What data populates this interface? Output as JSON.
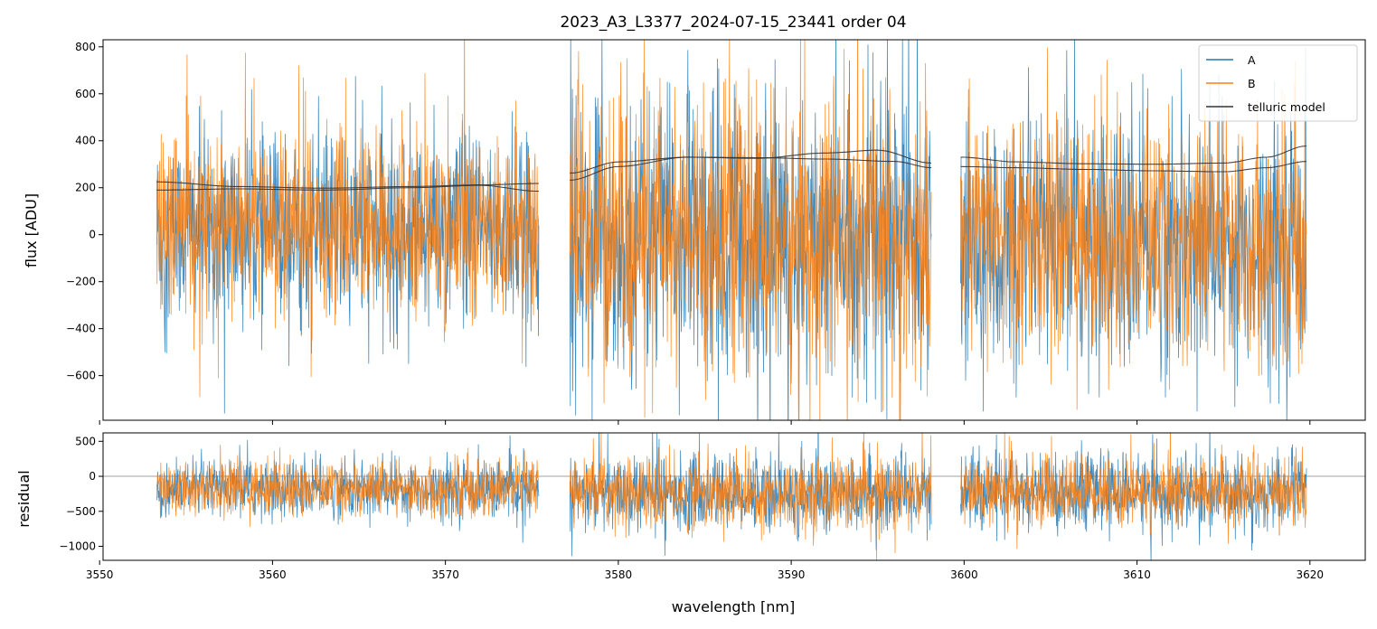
{
  "chart_data": {
    "type": "line",
    "title": "2023_A3_L3377_2024-07-15_23441  order 04",
    "xlabel": "wavelength [nm]",
    "xlim": [
      3550.2,
      3623.2
    ],
    "x_ticks": [
      3550,
      3560,
      3570,
      3580,
      3590,
      3600,
      3610,
      3620
    ],
    "x_tick_labels": [
      "3550",
      "3560",
      "3570",
      "3580",
      "3590",
      "3600",
      "3610",
      "3620"
    ],
    "segments": [
      [
        3553.3,
        3575.4
      ],
      [
        3577.2,
        3598.1
      ],
      [
        3599.8,
        3619.8
      ]
    ],
    "colors": {
      "A": "#1f77b4",
      "B": "#ff7f0e",
      "telluric": "#333333",
      "zero_line": "#808080"
    },
    "panels": [
      {
        "id": "flux",
        "ylabel": "flux [ADU]",
        "ylim": [
          -790,
          830
        ],
        "y_ticks": [
          -600,
          -400,
          -200,
          0,
          200,
          400,
          600,
          800
        ],
        "y_tick_labels": [
          "−600",
          "−400",
          "−200",
          "0",
          "200",
          "400",
          "600",
          "800"
        ],
        "legend": {
          "position": "top-right",
          "entries": [
            "A",
            "B",
            "telluric model"
          ]
        },
        "series": [
          {
            "name": "A",
            "segment_offsets": [
              20,
              -10,
              -30
            ],
            "segment_spreads": [
              200,
              290,
              260
            ]
          },
          {
            "name": "B",
            "segment_offsets": [
              40,
              0,
              -20
            ],
            "segment_spreads": [
              190,
              280,
              250
            ]
          }
        ],
        "telluric_model": [
          {
            "segment": 0,
            "x": [
              3553.3,
              3558,
              3563,
              3568,
              3572,
              3575.4
            ],
            "y": [
              225,
              205,
              198,
              205,
              212,
              218
            ]
          },
          {
            "segment": 0,
            "x": [
              3553.3,
              3558,
              3563,
              3568,
              3572,
              3575.4
            ],
            "y": [
              190,
              195,
              190,
              200,
              210,
              185
            ]
          },
          {
            "segment": 1,
            "x": [
              3577.2,
              3580,
              3584,
              3588,
              3592,
              3596,
              3598.1
            ],
            "y": [
              262,
              310,
              330,
              328,
              322,
              312,
              285
            ]
          },
          {
            "segment": 1,
            "x": [
              3577.2,
              3580,
              3584,
              3588,
              3592,
              3595,
              3598.1
            ],
            "y": [
              232,
              290,
              330,
              325,
              348,
              360,
              305
            ]
          },
          {
            "segment": 2,
            "x": [
              3599.8,
              3603,
              3607,
              3611,
              3615,
              3617.5,
              3619.8
            ],
            "y": [
              330,
              310,
              302,
              300,
              305,
              330,
              378
            ]
          },
          {
            "segment": 2,
            "x": [
              3599.8,
              3603,
              3607,
              3611,
              3615,
              3617.5,
              3619.8
            ],
            "y": [
              290,
              285,
              278,
              272,
              268,
              285,
              312
            ]
          }
        ]
      },
      {
        "id": "residual",
        "ylabel": "residual",
        "ylim": [
          -1200,
          620
        ],
        "y_ticks": [
          -1000,
          -500,
          0,
          500
        ],
        "y_tick_labels": [
          "−1000",
          "−500",
          "0",
          "500"
        ],
        "zero_line": 0,
        "series": [
          {
            "name": "A",
            "segment_offsets": [
              -180,
              -250,
              -230
            ],
            "segment_spreads": [
              200,
              260,
              250
            ]
          },
          {
            "name": "B",
            "segment_offsets": [
              -170,
              -240,
              -220
            ],
            "segment_spreads": [
              190,
              250,
              240
            ]
          }
        ]
      }
    ]
  }
}
